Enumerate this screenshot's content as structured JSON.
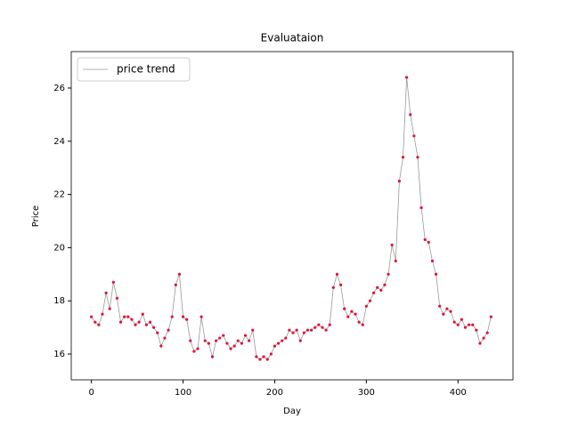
{
  "chart_data": {
    "type": "line",
    "title": "Evaluataion",
    "x_label": "Day",
    "y_label": "Price",
    "x": [
      0,
      4,
      8,
      12,
      16,
      20,
      24,
      28,
      32,
      36,
      40,
      44,
      48,
      52,
      56,
      60,
      64,
      68,
      72,
      76,
      80,
      84,
      88,
      92,
      96,
      100,
      104,
      108,
      112,
      116,
      120,
      124,
      128,
      132,
      136,
      140,
      144,
      148,
      152,
      156,
      160,
      164,
      168,
      172,
      176,
      180,
      184,
      188,
      192,
      196,
      200,
      204,
      208,
      212,
      216,
      220,
      224,
      228,
      232,
      236,
      240,
      244,
      248,
      252,
      256,
      260,
      264,
      268,
      272,
      276,
      280,
      284,
      288,
      292,
      296,
      300,
      304,
      308,
      312,
      316,
      320,
      324,
      328,
      332,
      336,
      340,
      344,
      348,
      352,
      356,
      360,
      364,
      368,
      372,
      376,
      380,
      384,
      388,
      392,
      396,
      400,
      404,
      408,
      412,
      416,
      420,
      424,
      428,
      432,
      436
    ],
    "series": [
      {
        "name": "price trend",
        "color": "#999999",
        "marker_color": "#dc143c",
        "values": [
          17.4,
          17.2,
          17.1,
          17.5,
          18.3,
          17.7,
          18.7,
          18.1,
          17.2,
          17.4,
          17.4,
          17.3,
          17.1,
          17.2,
          17.5,
          17.1,
          17.2,
          17.0,
          16.8,
          16.3,
          16.6,
          16.9,
          17.4,
          18.6,
          19.0,
          17.4,
          17.3,
          16.5,
          16.1,
          16.2,
          17.4,
          16.5,
          16.4,
          15.9,
          16.5,
          16.6,
          16.7,
          16.4,
          16.2,
          16.3,
          16.5,
          16.4,
          16.7,
          16.5,
          16.9,
          15.9,
          15.8,
          15.9,
          15.8,
          16.0,
          16.3,
          16.4,
          16.5,
          16.6,
          16.9,
          16.8,
          16.9,
          16.5,
          16.8,
          16.9,
          16.9,
          17.0,
          17.1,
          17.0,
          16.9,
          17.1,
          18.5,
          19.0,
          18.6,
          17.7,
          17.4,
          17.6,
          17.5,
          17.2,
          17.1,
          17.8,
          18.0,
          18.3,
          18.5,
          18.4,
          18.6,
          19.0,
          20.1,
          19.5,
          22.5,
          23.4,
          26.4,
          25.0,
          24.2,
          23.4,
          21.5,
          20.3,
          20.2,
          19.5,
          19.0,
          17.8,
          17.5,
          17.7,
          17.6,
          17.2,
          17.1,
          17.3,
          17.0,
          17.1,
          17.1,
          16.9,
          16.4,
          16.6,
          16.8,
          17.4
        ]
      }
    ],
    "xlim": [
      -22,
      460
    ],
    "ylim": [
      15.03,
      27.37
    ],
    "xticks": [
      0,
      100,
      200,
      300,
      400
    ],
    "yticks": [
      16,
      18,
      20,
      22,
      24,
      26
    ],
    "legend": "upper left"
  }
}
